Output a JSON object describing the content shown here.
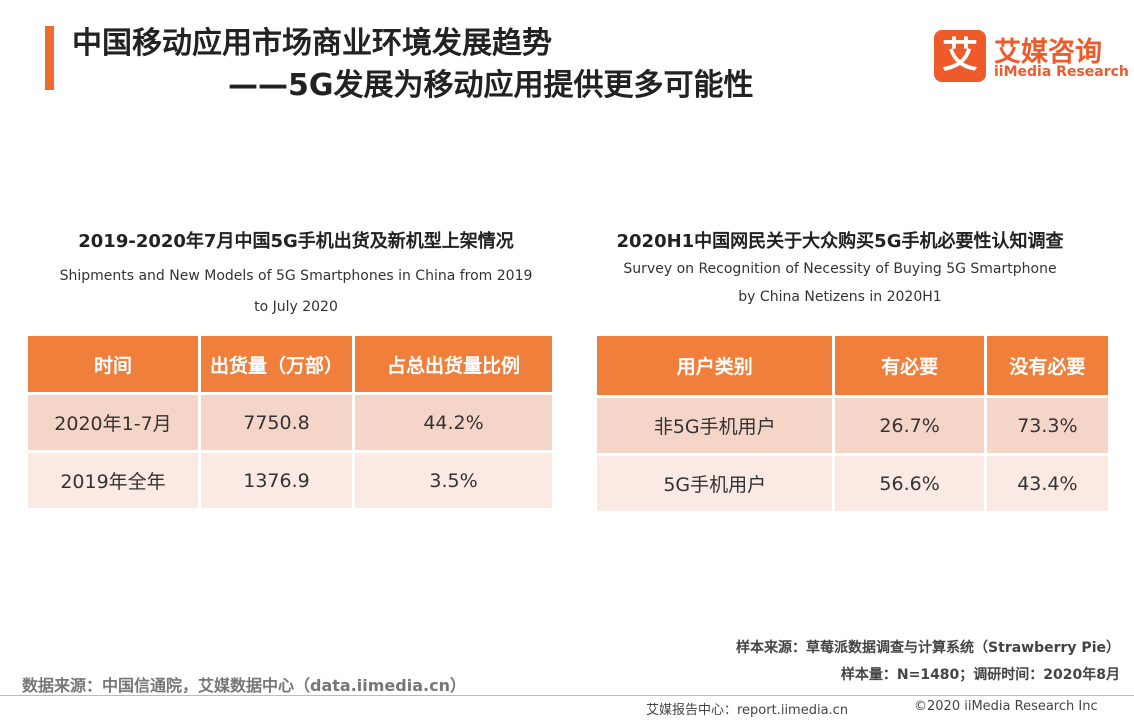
{
  "header": {
    "title_line1": "中国移动应用市场商业环境发展趋势",
    "title_line2": "——5G发展为移动应用提供更多可能性",
    "logo_name": "艾媒咨询",
    "logo_sub": "iiMedia Research",
    "logo_icon": "艾"
  },
  "left_table": {
    "title": "2019-2020年7月中国5G手机出货及新机型上架情况",
    "subtitle_line1": "Shipments and New Models of 5G Smartphones in China from 2019",
    "subtitle_line2": "to July 2020",
    "header": [
      "时间",
      "出货量（万部）",
      "占总出货量比例"
    ],
    "rows": [
      [
        "2020年1-7月",
        "7750.8",
        "44.2%"
      ],
      [
        "2019年全年",
        "1376.9",
        "3.5%"
      ]
    ]
  },
  "right_table": {
    "title": "2020H1中国网民关于大众购买5G手机必要性认知调查",
    "subtitle_line1": "Survey on Recognition of Necessity of Buying 5G Smartphone",
    "subtitle_line2": "by China Netizens in 2020H1",
    "header": [
      "用户类别",
      "有必要",
      "没有必要"
    ],
    "rows": [
      [
        "非5G手机用户",
        "26.7%",
        "73.3%"
      ],
      [
        "5G手机用户",
        "56.6%",
        "43.4%"
      ]
    ]
  },
  "footer": {
    "sample_source": "样本来源：草莓派数据调查与计算系统（Strawberry Pie）",
    "sample_size": "样本量：N=1480；调研时间：2020年8月",
    "data_source": "数据来源：中国信通院，艾媒数据中心（data.iimedia.cn）",
    "report_center": "艾媒报告中心：report.iimedia.cn",
    "copyright": "©2020  iiMedia Research Inc"
  }
}
